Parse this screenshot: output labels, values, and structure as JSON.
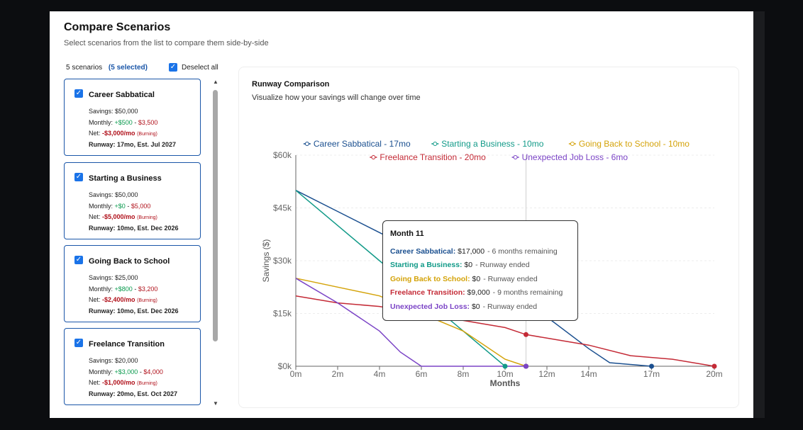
{
  "header": {
    "title": "Compare Scenarios",
    "subtitle": "Select scenarios from the list to compare them side-by-side"
  },
  "selection": {
    "count": "5 scenarios",
    "selected": "(5 selected)",
    "deselect_label": "Deselect all"
  },
  "scenarios": [
    {
      "name": "Career Sabbatical",
      "savings": "Savings: $50,000",
      "monthly_label": "Monthly:",
      "income": "+$500",
      "expense": "$3,500",
      "net_label": "Net:",
      "net": "-$3,000/mo",
      "burn": "(Burning)",
      "runway": "Runway: 17mo, Est. Jul 2027",
      "runway_tone": "green"
    },
    {
      "name": "Starting a Business",
      "savings": "Savings: $50,000",
      "monthly_label": "Monthly:",
      "income": "+$0",
      "expense": "$5,000",
      "net_label": "Net:",
      "net": "-$5,000/mo",
      "burn": "(Burning)",
      "runway": "Runway: 10mo, Est. Dec 2026",
      "runway_tone": "amber"
    },
    {
      "name": "Going Back to School",
      "savings": "Savings: $25,000",
      "monthly_label": "Monthly:",
      "income": "+$800",
      "expense": "$3,200",
      "net_label": "Net:",
      "net": "-$2,400/mo",
      "burn": "(Burning)",
      "runway": "Runway: 10mo, Est. Dec 2026",
      "runway_tone": "amber"
    },
    {
      "name": "Freelance Transition",
      "savings": "Savings: $20,000",
      "monthly_label": "Monthly:",
      "income": "+$3,000",
      "expense": "$4,000",
      "net_label": "Net:",
      "net": "-$1,000/mo",
      "burn": "(Burning)",
      "runway": "Runway: 20mo, Est. Oct 2027",
      "runway_tone": "green"
    }
  ],
  "chart_panel": {
    "title": "Runway Comparison",
    "subtitle": "Visualize how your savings will change over time"
  },
  "chart_data": {
    "type": "line",
    "xlabel": "Months",
    "ylabel": "Savings ($)",
    "xlim": [
      0,
      20
    ],
    "ylim": [
      0,
      60000
    ],
    "x_ticks": [
      "0m",
      "2m",
      "4m",
      "6m",
      "8m",
      "10m",
      "12m",
      "14m",
      "17m",
      "20m"
    ],
    "x_tick_values": [
      0,
      2,
      4,
      6,
      8,
      10,
      12,
      14,
      17,
      20
    ],
    "y_ticks": [
      "$0k",
      "$15k",
      "$30k",
      "$45k",
      "$60k"
    ],
    "y_tick_values": [
      0,
      15000,
      30000,
      45000,
      60000
    ],
    "legend_position": "top",
    "hover_month": 11,
    "series": [
      {
        "name": "Career Sabbatical - 17mo",
        "color": "#1a4f8f",
        "points": [
          [
            0,
            50000
          ],
          [
            2,
            44000
          ],
          [
            4,
            38000
          ],
          [
            6,
            32000
          ],
          [
            8,
            26000
          ],
          [
            10,
            20000
          ],
          [
            11,
            17000
          ],
          [
            12,
            14000
          ],
          [
            14,
            5000
          ],
          [
            15,
            1000
          ],
          [
            17,
            0
          ]
        ]
      },
      {
        "name": "Starting a Business - 10mo",
        "color": "#119a88",
        "points": [
          [
            0,
            50000
          ],
          [
            2,
            40000
          ],
          [
            4,
            30000
          ],
          [
            6,
            20000
          ],
          [
            8,
            10000
          ],
          [
            9,
            5000
          ],
          [
            10,
            0
          ]
        ]
      },
      {
        "name": "Going Back to School - 10mo",
        "color": "#d4a30a",
        "points": [
          [
            0,
            25000
          ],
          [
            2,
            22500
          ],
          [
            4,
            20000
          ],
          [
            6,
            15000
          ],
          [
            8,
            10000
          ],
          [
            10,
            2000
          ],
          [
            11,
            0
          ]
        ]
      },
      {
        "name": "Freelance Transition - 20mo",
        "color": "#c42a36",
        "points": [
          [
            0,
            20000
          ],
          [
            2,
            18000
          ],
          [
            4,
            17000
          ],
          [
            6,
            15000
          ],
          [
            8,
            13000
          ],
          [
            10,
            11000
          ],
          [
            11,
            9000
          ],
          [
            12,
            8000
          ],
          [
            14,
            6000
          ],
          [
            16,
            3000
          ],
          [
            18,
            2000
          ],
          [
            20,
            0
          ]
        ]
      },
      {
        "name": "Unexpected Job Loss - 6mo",
        "color": "#7b44c6",
        "points": [
          [
            0,
            25000
          ],
          [
            2,
            18000
          ],
          [
            4,
            10000
          ],
          [
            5,
            4000
          ],
          [
            6,
            0
          ],
          [
            11,
            0
          ]
        ]
      }
    ]
  },
  "tooltip": {
    "title": "Month 11",
    "rows": [
      {
        "label": "Career Sabbatical:",
        "value": "$17,000",
        "status": "- 6 months remaining",
        "color": "#1a4f8f"
      },
      {
        "label": "Starting a Business:",
        "value": "$0",
        "status": "- Runway ended",
        "color": "#119a88"
      },
      {
        "label": "Going Back to School:",
        "value": "$0",
        "status": "- Runway ended",
        "color": "#d4a30a"
      },
      {
        "label": "Freelance Transition:",
        "value": "$9,000",
        "status": "- 9 months remaining",
        "color": "#c42a36"
      },
      {
        "label": "Unexpected Job Loss:",
        "value": "$0",
        "status": "- Runway ended",
        "color": "#7b44c6"
      }
    ]
  }
}
